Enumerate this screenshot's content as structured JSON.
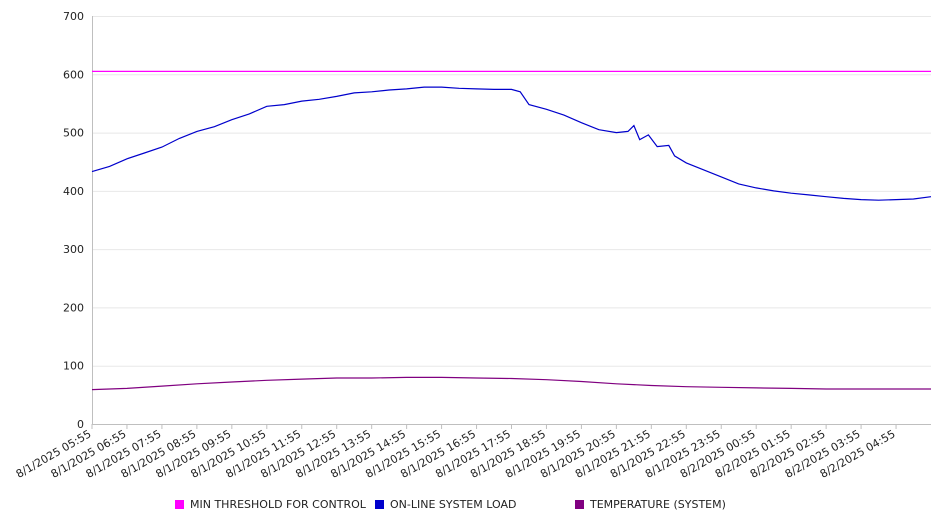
{
  "chart_data": {
    "type": "line",
    "ylim": [
      0,
      700
    ],
    "yticks": [
      0,
      100,
      200,
      300,
      400,
      500,
      600,
      700
    ],
    "x_tick_labels": [
      "8/1/2025 05:55",
      "8/1/2025 06:55",
      "8/1/2025 07:55",
      "8/1/2025 08:55",
      "8/1/2025 09:55",
      "8/1/2025 10:55",
      "8/1/2025 11:55",
      "8/1/2025 12:55",
      "8/1/2025 13:55",
      "8/1/2025 14:55",
      "8/1/2025 15:55",
      "8/1/2025 16:55",
      "8/1/2025 17:55",
      "8/1/2025 18:55",
      "8/1/2025 19:55",
      "8/1/2025 20:55",
      "8/1/2025 21:55",
      "8/1/2025 22:55",
      "8/1/2025 23:55",
      "8/2/2025 00:55",
      "8/2/2025 01:55",
      "8/2/2025 02:55",
      "8/2/2025 03:55",
      "8/2/2025 04:55"
    ],
    "x_end": "8/2/2025 05:55",
    "grid": true,
    "legend_position": "bottom",
    "series": [
      {
        "name": "MIN THRESHOLD FOR CONTROL",
        "color": "#ff00ff",
        "points": [
          [
            "8/1/2025 05:55",
            605
          ],
          [
            "8/2/2025 05:55",
            605
          ]
        ]
      },
      {
        "name": "ON-LINE SYSTEM LOAD",
        "color": "#0000cc",
        "points": [
          [
            "8/1/2025 05:55",
            433
          ],
          [
            "8/1/2025 06:25",
            442
          ],
          [
            "8/1/2025 06:55",
            455
          ],
          [
            "8/1/2025 07:25",
            465
          ],
          [
            "8/1/2025 07:55",
            475
          ],
          [
            "8/1/2025 08:25",
            490
          ],
          [
            "8/1/2025 08:55",
            502
          ],
          [
            "8/1/2025 09:25",
            510
          ],
          [
            "8/1/2025 09:55",
            522
          ],
          [
            "8/1/2025 10:25",
            532
          ],
          [
            "8/1/2025 10:55",
            545
          ],
          [
            "8/1/2025 11:25",
            548
          ],
          [
            "8/1/2025 11:55",
            554
          ],
          [
            "8/1/2025 12:25",
            557
          ],
          [
            "8/1/2025 12:55",
            562
          ],
          [
            "8/1/2025 13:25",
            568
          ],
          [
            "8/1/2025 13:55",
            570
          ],
          [
            "8/1/2025 14:25",
            573
          ],
          [
            "8/1/2025 14:55",
            575
          ],
          [
            "8/1/2025 15:25",
            578
          ],
          [
            "8/1/2025 15:55",
            578
          ],
          [
            "8/1/2025 16:25",
            576
          ],
          [
            "8/1/2025 16:55",
            575
          ],
          [
            "8/1/2025 17:25",
            574
          ],
          [
            "8/1/2025 17:55",
            574
          ],
          [
            "8/1/2025 18:10",
            570
          ],
          [
            "8/1/2025 18:25",
            548
          ],
          [
            "8/1/2025 18:55",
            540
          ],
          [
            "8/1/2025 19:25",
            530
          ],
          [
            "8/1/2025 19:55",
            517
          ],
          [
            "8/1/2025 20:25",
            505
          ],
          [
            "8/1/2025 20:55",
            500
          ],
          [
            "8/1/2025 21:15",
            502
          ],
          [
            "8/1/2025 21:25",
            512
          ],
          [
            "8/1/2025 21:35",
            488
          ],
          [
            "8/1/2025 21:50",
            496
          ],
          [
            "8/1/2025 22:05",
            476
          ],
          [
            "8/1/2025 22:25",
            478
          ],
          [
            "8/1/2025 22:35",
            460
          ],
          [
            "8/1/2025 22:55",
            448
          ],
          [
            "8/1/2025 23:25",
            436
          ],
          [
            "8/1/2025 23:55",
            424
          ],
          [
            "8/2/2025 00:25",
            412
          ],
          [
            "8/2/2025 00:55",
            405
          ],
          [
            "8/2/2025 01:25",
            400
          ],
          [
            "8/2/2025 01:55",
            396
          ],
          [
            "8/2/2025 02:25",
            393
          ],
          [
            "8/2/2025 02:55",
            390
          ],
          [
            "8/2/2025 03:25",
            387
          ],
          [
            "8/2/2025 03:55",
            385
          ],
          [
            "8/2/2025 04:25",
            384
          ],
          [
            "8/2/2025 04:55",
            385
          ],
          [
            "8/2/2025 05:25",
            386
          ],
          [
            "8/2/2025 05:55",
            390
          ]
        ]
      },
      {
        "name": "TEMPERATURE (SYSTEM)",
        "color": "#800080",
        "points": [
          [
            "8/1/2025 05:55",
            59
          ],
          [
            "8/1/2025 06:55",
            61
          ],
          [
            "8/1/2025 07:55",
            65
          ],
          [
            "8/1/2025 08:55",
            69
          ],
          [
            "8/1/2025 09:55",
            72
          ],
          [
            "8/1/2025 10:55",
            75
          ],
          [
            "8/1/2025 11:55",
            77
          ],
          [
            "8/1/2025 12:55",
            79
          ],
          [
            "8/1/2025 13:55",
            79
          ],
          [
            "8/1/2025 14:55",
            80
          ],
          [
            "8/1/2025 15:55",
            80
          ],
          [
            "8/1/2025 16:55",
            79
          ],
          [
            "8/1/2025 17:55",
            78
          ],
          [
            "8/1/2025 18:55",
            76
          ],
          [
            "8/1/2025 19:55",
            73
          ],
          [
            "8/1/2025 20:55",
            69
          ],
          [
            "8/1/2025 21:55",
            66
          ],
          [
            "8/1/2025 22:55",
            64
          ],
          [
            "8/1/2025 23:55",
            63
          ],
          [
            "8/2/2025 00:55",
            62
          ],
          [
            "8/2/2025 01:55",
            61
          ],
          [
            "8/2/2025 02:55",
            60
          ],
          [
            "8/2/2025 03:55",
            60
          ],
          [
            "8/2/2025 04:55",
            60
          ],
          [
            "8/2/2025 05:55",
            60
          ]
        ]
      }
    ]
  }
}
